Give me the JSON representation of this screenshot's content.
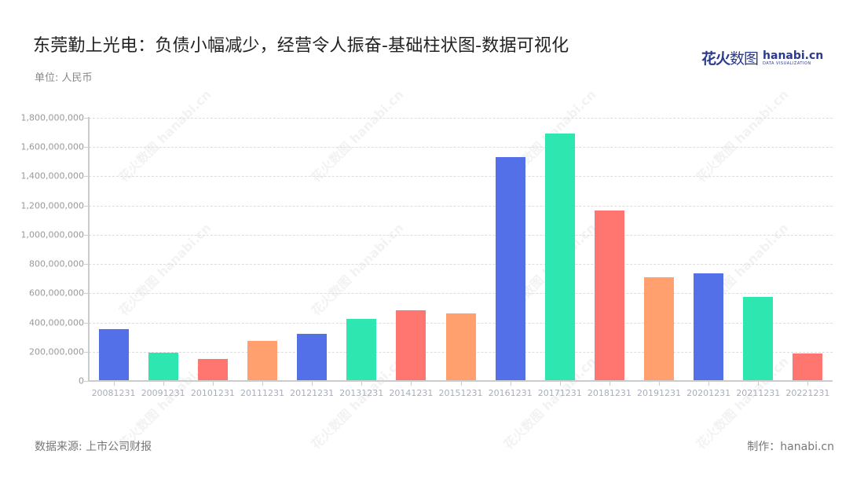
{
  "header": {
    "title": "东莞勤上光电：负债小幅减少，经营令人振奋-基础柱状图-数据可视化",
    "unit": "单位: 人民币"
  },
  "logo": {
    "cn_bold": "花火",
    "cn_thin": "数图",
    "en": "hanabi.cn",
    "en_sub": "DATA VISUALIZATION"
  },
  "footer": {
    "source": "数据来源: 上市公司财报",
    "credit": "制作：hanabi.cn"
  },
  "watermark": "花火数图 hanabi.cn",
  "colors": [
    "#5470e8",
    "#2de6b0",
    "#ff7570",
    "#ffa06e"
  ],
  "chart_data": {
    "type": "bar",
    "title": "东莞勤上光电：负债小幅减少，经营令人振奋-基础柱状图-数据可视化",
    "xlabel": "",
    "ylabel": "单位: 人民币",
    "ylim": [
      0,
      1800000000
    ],
    "grid": true,
    "legend": "none",
    "yticks": [
      "0",
      "200,000,000",
      "400,000,000",
      "600,000,000",
      "800,000,000",
      "1,000,000,000",
      "1,200,000,000",
      "1,400,000,000",
      "1,600,000,000",
      "1,800,000,000"
    ],
    "categories": [
      "20081231",
      "20091231",
      "20101231",
      "20111231",
      "20121231",
      "20131231",
      "20141231",
      "20151231",
      "20161231",
      "20171231",
      "20181231",
      "20191231",
      "20201231",
      "20211231",
      "20221231"
    ],
    "values": [
      355000000,
      194000000,
      150000000,
      274000000,
      322000000,
      425000000,
      484000000,
      462000000,
      1533000000,
      1692000000,
      1165000000,
      711000000,
      737000000,
      573000000,
      188000000
    ]
  }
}
